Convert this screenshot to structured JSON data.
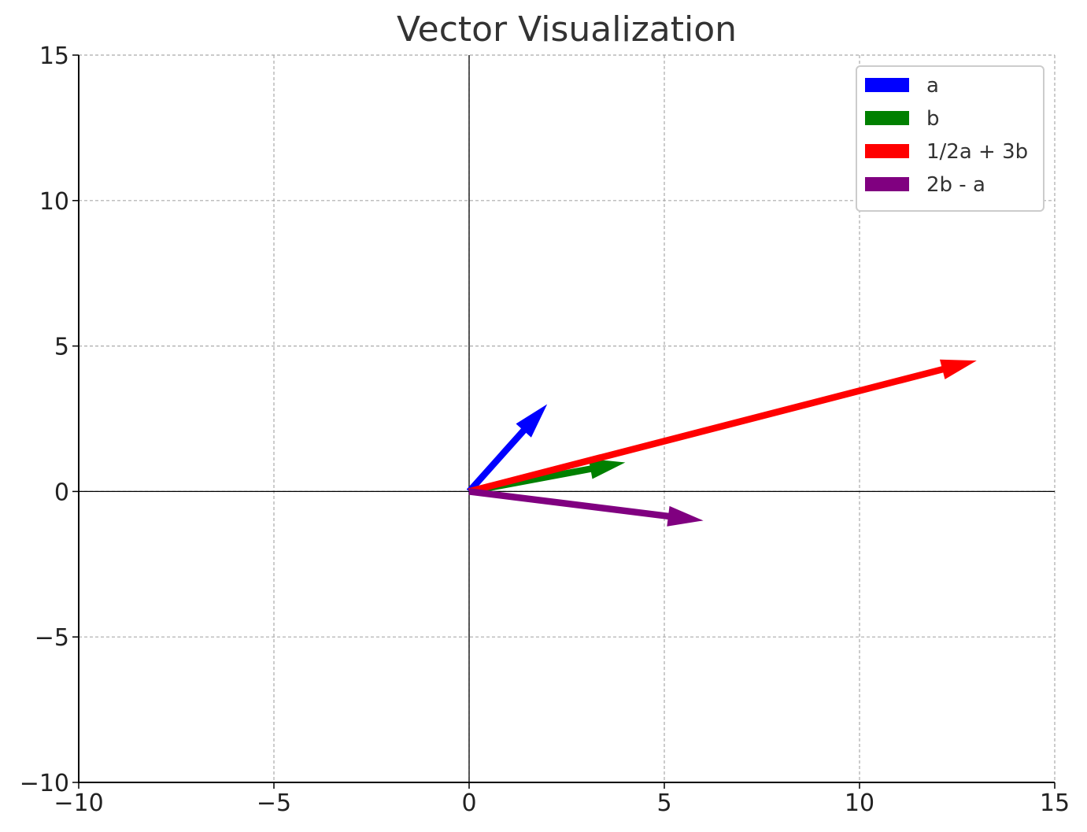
{
  "chart_data": {
    "type": "quiver",
    "title": "Vector Visualization",
    "xlabel": "",
    "ylabel": "",
    "xlim": [
      -10,
      15
    ],
    "ylim": [
      -10,
      15
    ],
    "xticks": [
      -10,
      -5,
      0,
      5,
      10,
      15
    ],
    "yticks": [
      -10,
      -5,
      0,
      5,
      10,
      15
    ],
    "xtick_labels": [
      "−10",
      "−5",
      "0",
      "5",
      "10",
      "15"
    ],
    "ytick_labels": [
      "−10",
      "−5",
      "0",
      "5",
      "10",
      "15"
    ],
    "grid": true,
    "legend_position": "top-right",
    "series": [
      {
        "name": "a",
        "origin": [
          0,
          0
        ],
        "vector": [
          2,
          3
        ],
        "color": "#0000ff"
      },
      {
        "name": "b",
        "origin": [
          0,
          0
        ],
        "vector": [
          4,
          1
        ],
        "color": "#008000"
      },
      {
        "name": "1/2a + 3b",
        "origin": [
          0,
          0
        ],
        "vector": [
          13,
          4.5
        ],
        "color": "#ff0000"
      },
      {
        "name": "2b - a",
        "origin": [
          0,
          0
        ],
        "vector": [
          6,
          -1
        ],
        "color": "#800080"
      }
    ]
  }
}
